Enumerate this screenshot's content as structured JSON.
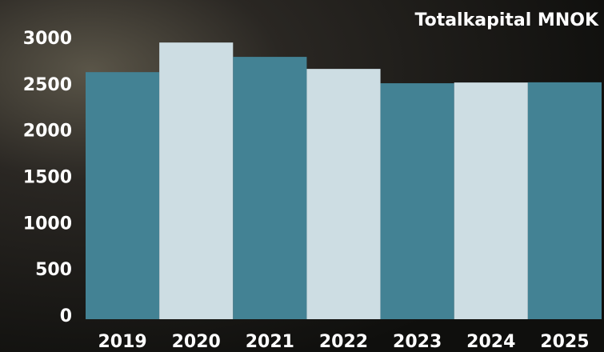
{
  "chart_data": {
    "type": "bar",
    "title": "Totalkapital MNOK",
    "categories": [
      "2019",
      "2020",
      "2021",
      "2022",
      "2023",
      "2024",
      "2025"
    ],
    "values": [
      2670,
      2990,
      2835,
      2705,
      2550,
      2558,
      2560
    ],
    "colors": [
      "#438294",
      "#cddde3",
      "#438294",
      "#cddde3",
      "#438294",
      "#cddde3",
      "#438294"
    ],
    "ylim": [
      0,
      3000
    ],
    "yticks": [
      0,
      500,
      1000,
      1500,
      2000,
      2500,
      3000
    ],
    "grid": false
  }
}
